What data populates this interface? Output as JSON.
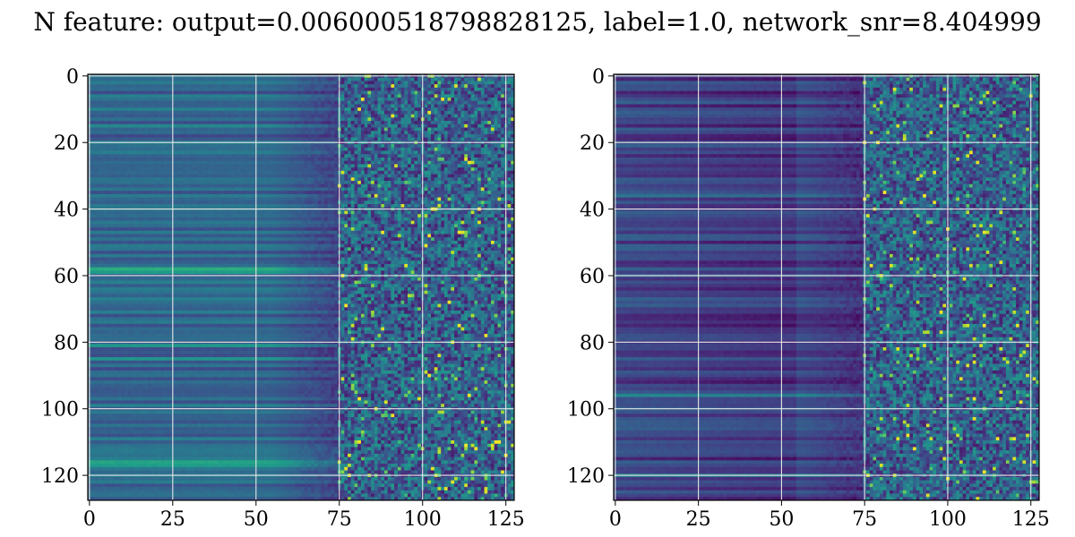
{
  "chart_data": [
    {
      "type": "heatmap",
      "title": "N feature: output=0.006000518798828125, label=1.0, network_snr=8.404999",
      "colormap": "viridis",
      "grid": true,
      "rows": 128,
      "cols": 128,
      "xlim": [
        0,
        127
      ],
      "ylim": [
        127,
        0
      ],
      "x_ticks": [
        "0",
        "25",
        "50",
        "75",
        "100",
        "125"
      ],
      "y_ticks": [
        "0",
        "20",
        "40",
        "60",
        "80",
        "100",
        "120"
      ],
      "description": {
        "smooth_band_cols": [
          0,
          75
        ],
        "noisy_band_cols": [
          75,
          127
        ],
        "low_end_value": 0.0,
        "high_end_value": 1.0
      }
    },
    {
      "type": "heatmap",
      "colormap": "viridis",
      "grid": true,
      "rows": 128,
      "cols": 128,
      "xlim": [
        0,
        127
      ],
      "ylim": [
        127,
        0
      ],
      "x_ticks": [
        "0",
        "25",
        "50",
        "75",
        "100",
        "125"
      ],
      "y_ticks": [
        "0",
        "20",
        "40",
        "60",
        "80",
        "100",
        "120"
      ],
      "description": {
        "smooth_band_cols": [
          0,
          75
        ],
        "noisy_band_cols": [
          75,
          127
        ],
        "low_end_value": 0.0,
        "high_end_value": 1.0
      }
    }
  ]
}
